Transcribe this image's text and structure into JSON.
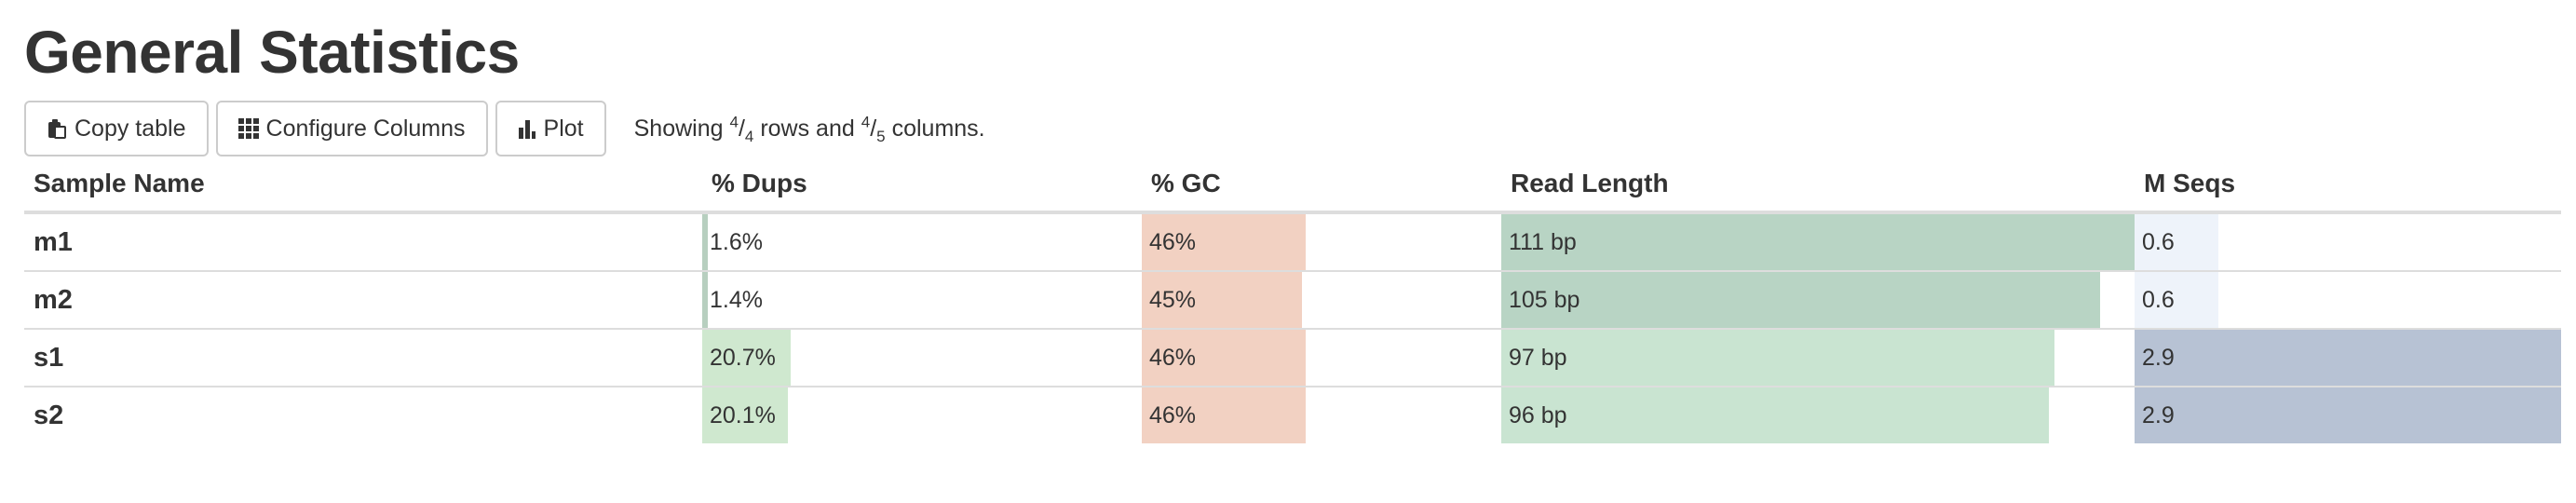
{
  "page": {
    "title": "General Statistics"
  },
  "toolbar": {
    "copy_label": "Copy table",
    "configure_label": "Configure Columns",
    "plot_label": "Plot",
    "status_prefix": "Showing",
    "rows_shown": "4",
    "rows_total": "4",
    "rows_word": "rows and",
    "cols_shown": "4",
    "cols_total": "5",
    "cols_word": "columns."
  },
  "table": {
    "headers": [
      "Sample Name",
      "% Dups",
      "% GC",
      "Read Length",
      "M Seqs"
    ],
    "columns": [
      {
        "key": "dups",
        "max": 21.0,
        "color": "#cfe8cf",
        "small_color": "#b7cfbf"
      },
      {
        "key": "gc",
        "max": 46.0,
        "color": "#f2d1c2"
      },
      {
        "key": "readlen",
        "max": 111.0,
        "color": "#c9e4d1",
        "top_color": "#b8d4c4"
      },
      {
        "key": "mseqs",
        "max": 2.9,
        "color": "#b7c2d4",
        "small_color": "#eef3fa"
      }
    ],
    "rows": [
      {
        "name": "m1",
        "dups": "1.6%",
        "dups_v": 1.6,
        "gc": "46%",
        "gc_v": 46,
        "readlen": "111 bp",
        "readlen_v": 111,
        "mseqs": "0.6",
        "mseqs_v": 0.6
      },
      {
        "name": "m2",
        "dups": "1.4%",
        "dups_v": 1.4,
        "gc": "45%",
        "gc_v": 45,
        "readlen": "105 bp",
        "readlen_v": 105,
        "mseqs": "0.6",
        "mseqs_v": 0.6
      },
      {
        "name": "s1",
        "dups": "20.7%",
        "dups_v": 20.7,
        "gc": "46%",
        "gc_v": 46,
        "readlen": "97 bp",
        "readlen_v": 97,
        "mseqs": "2.9",
        "mseqs_v": 2.9
      },
      {
        "name": "s2",
        "dups": "20.1%",
        "dups_v": 20.1,
        "gc": "46%",
        "gc_v": 46,
        "readlen": "96 bp",
        "readlen_v": 96,
        "mseqs": "2.9",
        "mseqs_v": 2.9
      }
    ]
  },
  "icons": {
    "copy": "clipboard-icon",
    "configure": "grid-icon",
    "plot": "bar-chart-icon"
  }
}
